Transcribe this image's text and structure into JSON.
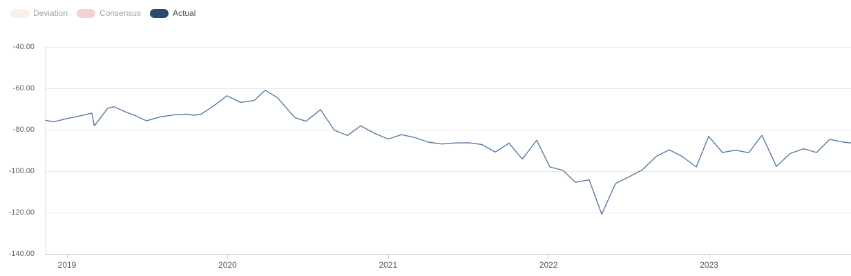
{
  "legend": {
    "items": [
      {
        "label": "Deviation",
        "color": "#fbf0e4",
        "text_color": "#a8a8a8",
        "active": false
      },
      {
        "label": "Consensus",
        "color": "#f4d2d0",
        "text_color": "#a8a8a8",
        "active": false
      },
      {
        "label": "Actual",
        "color": "#2a4a6b",
        "text_color": "#4c4c4c",
        "active": true
      }
    ]
  },
  "chart_data": {
    "type": "line",
    "title": "",
    "xlabel": "",
    "ylabel": "",
    "grid": "horizontal",
    "legend_position": "top-left",
    "xlim": [
      2018.83,
      2023.89
    ],
    "ylim": [
      -140,
      -40
    ],
    "x_ticks": [
      2019,
      2020,
      2021,
      2022,
      2023
    ],
    "y_ticks": [
      {
        "value": -40,
        "label": "-40.00"
      },
      {
        "value": -60,
        "label": "-60.00"
      },
      {
        "value": -80,
        "label": "-80.00"
      },
      {
        "value": -100,
        "label": "-100.00"
      },
      {
        "value": -120,
        "label": "-120.00"
      },
      {
        "value": -140,
        "label": "-140.00"
      }
    ],
    "series": [
      {
        "name": "Actual",
        "color": "#5a78a0",
        "points": [
          [
            2018.832,
            -75.0
          ],
          [
            2018.917,
            -76.2
          ],
          [
            2019.0,
            -74.6
          ],
          [
            2019.082,
            -73.3
          ],
          [
            2019.155,
            -72.0
          ],
          [
            2019.17,
            -78.2
          ],
          [
            2019.254,
            -69.6
          ],
          [
            2019.293,
            -68.9
          ],
          [
            2019.361,
            -71.3
          ],
          [
            2019.426,
            -73.2
          ],
          [
            2019.495,
            -75.7
          ],
          [
            2019.581,
            -73.8
          ],
          [
            2019.667,
            -72.8
          ],
          [
            2019.749,
            -72.5
          ],
          [
            2019.792,
            -73.0
          ],
          [
            2019.835,
            -72.5
          ],
          [
            2019.917,
            -68.3
          ],
          [
            2019.996,
            -63.6
          ],
          [
            2020.08,
            -66.8
          ],
          [
            2020.166,
            -65.9
          ],
          [
            2020.235,
            -60.9
          ],
          [
            2020.312,
            -64.6
          ],
          [
            2020.42,
            -74.2
          ],
          [
            2020.489,
            -75.9
          ],
          [
            2020.579,
            -70.3
          ],
          [
            2020.665,
            -80.2
          ],
          [
            2020.747,
            -82.8
          ],
          [
            2020.829,
            -78.1
          ],
          [
            2020.915,
            -81.7
          ],
          [
            2021.001,
            -84.5
          ],
          [
            2021.083,
            -82.4
          ],
          [
            2021.169,
            -83.8
          ],
          [
            2021.25,
            -86.0
          ],
          [
            2021.336,
            -86.9
          ],
          [
            2021.418,
            -86.4
          ],
          [
            2021.504,
            -86.3
          ],
          [
            2021.586,
            -87.2
          ],
          [
            2021.668,
            -90.8
          ],
          [
            2021.754,
            -86.5
          ],
          [
            2021.836,
            -94.2
          ],
          [
            2021.926,
            -85.1
          ],
          [
            2022.008,
            -98.0
          ],
          [
            2022.089,
            -99.6
          ],
          [
            2022.167,
            -105.4
          ],
          [
            2022.253,
            -104.2
          ],
          [
            2022.331,
            -120.8
          ],
          [
            2022.417,
            -106.0
          ],
          [
            2022.503,
            -102.7
          ],
          [
            2022.585,
            -99.3
          ],
          [
            2022.67,
            -92.9
          ],
          [
            2022.752,
            -89.7
          ],
          [
            2022.834,
            -93.0
          ],
          [
            2022.92,
            -98.0
          ],
          [
            2022.997,
            -83.2
          ],
          [
            2023.083,
            -91.0
          ],
          [
            2023.165,
            -89.9
          ],
          [
            2023.247,
            -91.1
          ],
          [
            2023.329,
            -82.7
          ],
          [
            2023.419,
            -97.7
          ],
          [
            2023.505,
            -91.5
          ],
          [
            2023.587,
            -89.2
          ],
          [
            2023.669,
            -91.0
          ],
          [
            2023.751,
            -84.7
          ],
          [
            2023.837,
            -86.0
          ],
          [
            2023.884,
            -86.4
          ]
        ]
      }
    ]
  }
}
